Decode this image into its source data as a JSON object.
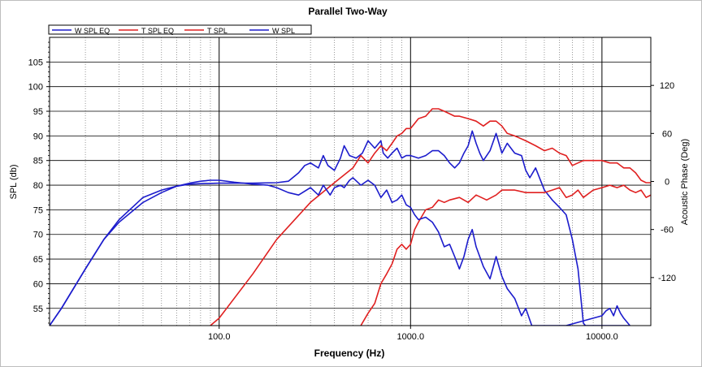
{
  "chart_data": {
    "type": "line",
    "title": "Parallel Two-Way",
    "xlabel": "Frequency (Hz)",
    "ylabel": "SPL (db)",
    "y2label": "Acoustic Phase (Deg)",
    "x_scale": "log",
    "xlim": [
      13,
      18000
    ],
    "ylim": [
      51.5,
      110
    ],
    "y2lim": [
      -180,
      180
    ],
    "x_major_ticks": [
      "100.0",
      "1000.0",
      "10000.0"
    ],
    "y_ticks": [
      "55",
      "60",
      "65",
      "70",
      "75",
      "80",
      "85",
      "90",
      "95",
      "100",
      "105"
    ],
    "y2_ticks": [
      "-120",
      "-60",
      "0",
      "60",
      "120"
    ],
    "grid": true,
    "legend_position": "top-left",
    "series": [
      {
        "name": "W SPL EQ",
        "color": "#1c1ccc",
        "x": [
          13,
          15,
          20,
          25,
          30,
          40,
          50,
          60,
          70,
          80,
          100,
          150,
          200,
          230,
          260,
          280,
          300,
          330,
          350,
          370,
          400,
          430,
          450,
          480,
          520,
          560,
          600,
          650,
          700,
          720,
          760,
          800,
          850,
          900,
          950,
          1000,
          1100,
          1200,
          1300,
          1400,
          1500,
          1600,
          1700,
          1800,
          1900,
          2000,
          2100,
          2200,
          2300,
          2400,
          2600,
          2800,
          3000,
          3200,
          3500,
          3800,
          4000,
          4200,
          4500,
          5000,
          5500,
          6000,
          6500,
          7000,
          7500,
          8000,
          8200,
          8500,
          9000,
          9500,
          10000,
          11000,
          12000,
          13000,
          14000
        ],
        "values": [
          51.5,
          55,
          63,
          69,
          73,
          77.5,
          79,
          79.8,
          80.2,
          80.3,
          80.4,
          80.4,
          80.5,
          80.8,
          82.5,
          84,
          84.5,
          83.5,
          86,
          84,
          83,
          85.5,
          88,
          86,
          85.5,
          86.5,
          89,
          87.5,
          89,
          86.5,
          85.5,
          86.5,
          87.5,
          85.5,
          86,
          86,
          85.5,
          86,
          87,
          87,
          86,
          84.5,
          83.5,
          84.5,
          86.5,
          88,
          91,
          88.5,
          86.5,
          85,
          87,
          90.5,
          86.5,
          88.5,
          86.5,
          86,
          83,
          81.5,
          83.5,
          79,
          77,
          75.5,
          74,
          69,
          63,
          52,
          51.5,
          51.5,
          51.5,
          51.5,
          51.5,
          51.5,
          51.5,
          51.5,
          51.5
        ]
      },
      {
        "name": "T SPL EQ",
        "color": "#e02020",
        "x": [
          90,
          100,
          150,
          200,
          300,
          400,
          500,
          550,
          600,
          650,
          700,
          750,
          800,
          850,
          900,
          950,
          1000,
          1100,
          1200,
          1300,
          1400,
          1500,
          1600,
          1700,
          1800,
          2000,
          2200,
          2400,
          2600,
          2800,
          3000,
          3200,
          3500,
          4000,
          4500,
          5000,
          5500,
          6000,
          6500,
          7000,
          8000,
          9000,
          10000,
          11000,
          12000,
          13000,
          14000,
          15000,
          16000,
          17000,
          18000
        ],
        "values": [
          51.5,
          53,
          62,
          69,
          76.5,
          80.5,
          83.5,
          86,
          84.5,
          86.5,
          88,
          87,
          88.5,
          90,
          90.5,
          91.5,
          91.5,
          93.5,
          94,
          95.5,
          95.5,
          95,
          94.5,
          94,
          94,
          93.5,
          93,
          92,
          93,
          93,
          92,
          90.5,
          90,
          89,
          88,
          87,
          87.5,
          86.5,
          86,
          84,
          85,
          85,
          85,
          84.5,
          84.5,
          83.5,
          83.5,
          82.5,
          81,
          80.5,
          80.5
        ]
      },
      {
        "name": "T SPL",
        "color": "#e02020",
        "x": [
          550,
          600,
          650,
          700,
          750,
          800,
          850,
          900,
          950,
          1000,
          1050,
          1100,
          1200,
          1300,
          1400,
          1500,
          1600,
          1800,
          2000,
          2200,
          2500,
          2800,
          3000,
          3500,
          4000,
          4500,
          5000,
          5500,
          6000,
          6500,
          7000,
          7500,
          8000,
          9000,
          10000,
          11000,
          12000,
          13000,
          14000,
          15000,
          16000,
          17000,
          18000
        ],
        "values": [
          51.5,
          54,
          56,
          60,
          62,
          64,
          67,
          68,
          67,
          68,
          71,
          72.5,
          75,
          75.5,
          77,
          76.5,
          77,
          77.5,
          76.5,
          78,
          77,
          78,
          79,
          79,
          78.5,
          78.5,
          78.5,
          79,
          79.5,
          77.5,
          78,
          79,
          77.5,
          79,
          79.5,
          80,
          79.5,
          80,
          79,
          78.5,
          79,
          77.5,
          78
        ]
      },
      {
        "name": "W SPL",
        "color": "#1c1ccc",
        "x": [
          13,
          15,
          20,
          25,
          30,
          40,
          50,
          60,
          70,
          80,
          90,
          100,
          120,
          150,
          180,
          200,
          230,
          260,
          300,
          330,
          350,
          380,
          400,
          430,
          450,
          480,
          500,
          550,
          600,
          650,
          700,
          750,
          800,
          850,
          900,
          950,
          1000,
          1050,
          1100,
          1200,
          1300,
          1400,
          1500,
          1600,
          1700,
          1800,
          1900,
          2000,
          2100,
          2200,
          2400,
          2600,
          2800,
          3000,
          3200,
          3500,
          3800,
          4000,
          4300,
          4600,
          5000,
          5500,
          6000,
          6500,
          10000,
          10500,
          11000,
          11500,
          12000,
          12500,
          13000,
          14000
        ],
        "values": [
          51.5,
          55,
          63,
          69,
          72.5,
          76.5,
          78.5,
          79.8,
          80.4,
          80.8,
          81,
          81,
          80.6,
          80.2,
          80,
          79.5,
          78.5,
          78,
          79.5,
          78,
          80,
          78,
          79.5,
          80,
          79.5,
          81,
          81.5,
          80,
          81,
          80,
          77.5,
          79,
          76.5,
          77,
          78,
          76,
          75.5,
          74,
          73,
          73.5,
          72.5,
          70.5,
          67.5,
          68,
          65.5,
          63,
          65.5,
          69,
          71,
          67.5,
          63.5,
          61,
          65.5,
          61.5,
          59,
          57,
          53.5,
          55,
          51.5,
          51.5,
          51.5,
          51.5,
          51.5,
          51.5,
          53.5,
          54.5,
          55,
          53.5,
          55.5,
          54,
          53,
          51.5
        ]
      }
    ]
  }
}
